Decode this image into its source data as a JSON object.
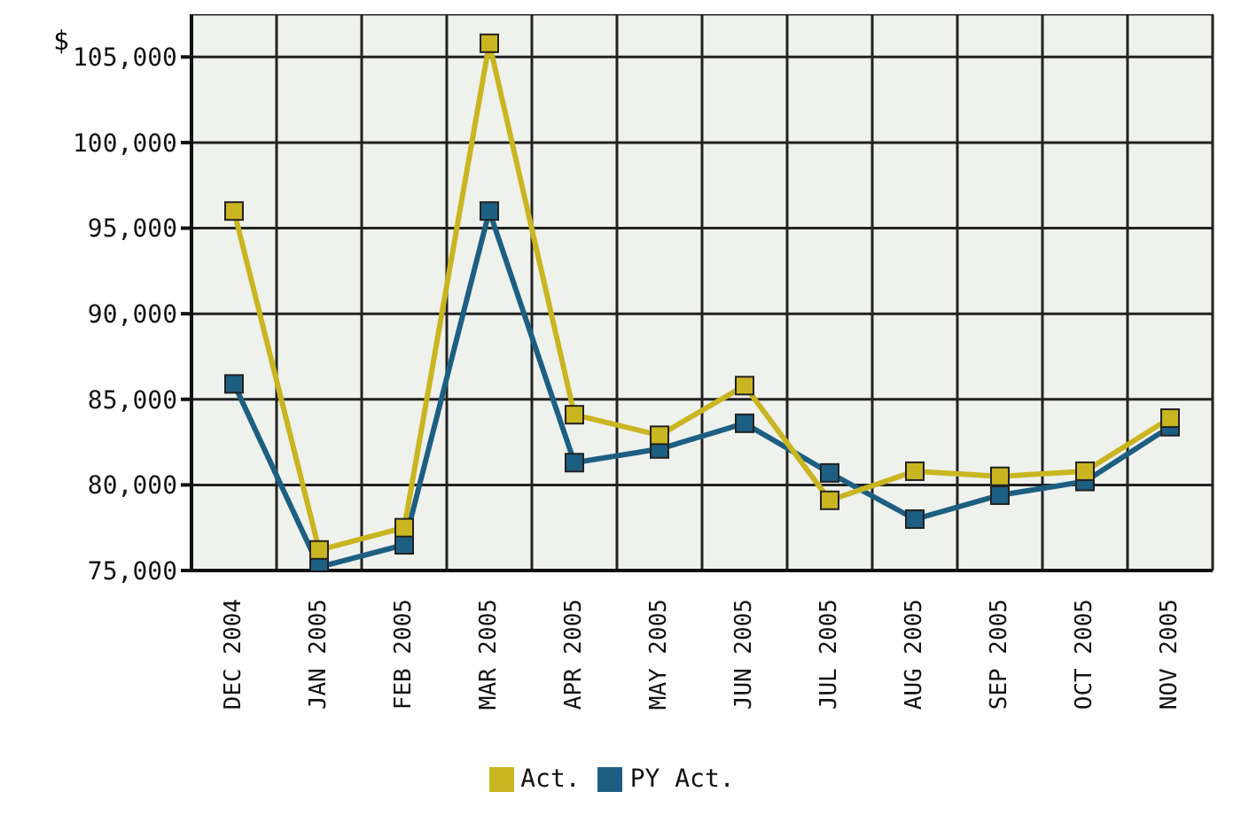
{
  "chart_data": {
    "type": "line",
    "ylabel": "$",
    "categories": [
      "DEC 2004",
      "JAN 2005",
      "FEB 2005",
      "MAR 2005",
      "APR 2005",
      "MAY 2005",
      "JUN 2005",
      "JUL 2005",
      "AUG 2005",
      "SEP 2005",
      "OCT 2005",
      "NOV 2005"
    ],
    "series": [
      {
        "name": "Act.",
        "color": "#c9b520",
        "values": [
          96000,
          76200,
          77500,
          105800,
          84100,
          82900,
          85800,
          79100,
          80800,
          80500,
          80800,
          83900
        ]
      },
      {
        "name": "PY Act.",
        "color": "#1d5f82",
        "values": [
          85900,
          75200,
          76500,
          96000,
          81300,
          82100,
          83600,
          80700,
          78000,
          79400,
          80200,
          83400
        ]
      }
    ],
    "ylim": [
      75000,
      107500
    ],
    "yticks": [
      {
        "value": 75000,
        "label": "75,000"
      },
      {
        "value": 80000,
        "label": "80,000"
      },
      {
        "value": 85000,
        "label": "85,000"
      },
      {
        "value": 90000,
        "label": "90,000"
      },
      {
        "value": 95000,
        "label": "95,000"
      },
      {
        "value": 100000,
        "label": "100,000"
      },
      {
        "value": 105000,
        "label": "105,000"
      }
    ],
    "grid": true,
    "legend": "bottom",
    "marker": "square",
    "line_style": "solid"
  }
}
